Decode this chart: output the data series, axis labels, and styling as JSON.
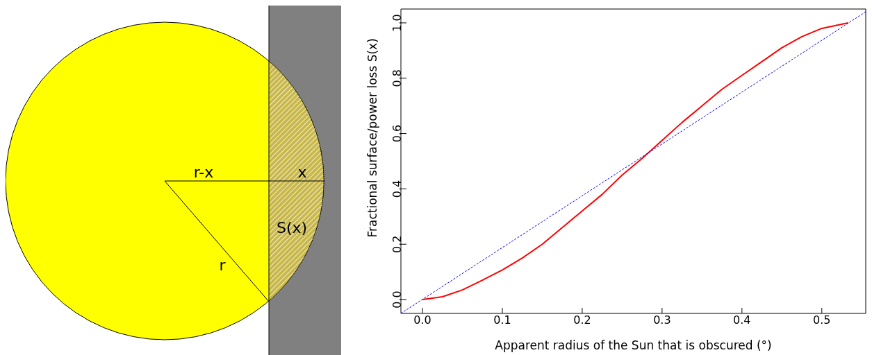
{
  "chart_data": {
    "type": "line",
    "xlabel": "Apparent radius of the Sun that is obscured (°)",
    "ylabel": "Fractional surface/power loss  S(x)",
    "xlim": [
      -0.027,
      0.555
    ],
    "xticks": [
      {
        "value": 0,
        "label": "0.0"
      },
      0.1,
      0.2,
      0.3,
      0.4,
      0.5
    ],
    "ylim": [
      -0.05,
      1.05
    ],
    "yticks": [
      {
        "value": 0,
        "label": "0.0"
      },
      0.2,
      0.4,
      0.6,
      0.8,
      {
        "value": 1,
        "label": "1.0"
      }
    ],
    "marker": "none",
    "annotations": [
      "r-x",
      "x",
      "S(x)",
      "r"
    ],
    "series": [
      {
        "color": "#ff0000",
        "line_style": "solid",
        "x": [
          0,
          0.025,
          0.05,
          0.075,
          0.1,
          0.125,
          0.15,
          0.175,
          0.2,
          0.225,
          0.25,
          0.275,
          0.3,
          0.325,
          0.35,
          0.375,
          0.4,
          0.425,
          0.45,
          0.475,
          0.5,
          0.533
        ],
        "values": [
          0,
          0.01,
          0.035,
          0.07,
          0.107,
          0.15,
          0.2,
          0.26,
          0.32,
          0.38,
          0.45,
          0.51,
          0.575,
          0.64,
          0.7,
          0.76,
          0.81,
          0.86,
          0.91,
          0.95,
          0.98,
          1.0
        ]
      },
      {
        "color": "#0000ff",
        "line_style": "dashed",
        "x": [
          -0.027,
          0.555
        ],
        "values": [
          -0.05,
          1.04
        ]
      }
    ]
  }
}
